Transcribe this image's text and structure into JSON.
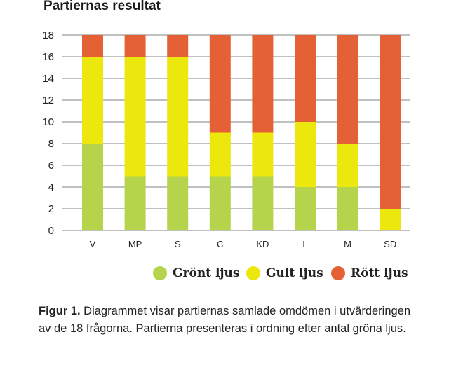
{
  "chart_data": {
    "type": "bar",
    "stacked": true,
    "title": "Partiernas resultat",
    "categories": [
      "V",
      "MP",
      "S",
      "C",
      "KD",
      "L",
      "M",
      "SD"
    ],
    "series": [
      {
        "name": "Grönt ljus",
        "color": "#b5d34b",
        "values": [
          8,
          5,
          5,
          5,
          5,
          4,
          4,
          0
        ]
      },
      {
        "name": "Gult ljus",
        "color": "#ece70d",
        "values": [
          8,
          11,
          11,
          4,
          4,
          6,
          4,
          2
        ]
      },
      {
        "name": "Rött ljus",
        "color": "#e46035",
        "values": [
          2,
          2,
          2,
          9,
          9,
          8,
          10,
          16
        ]
      }
    ],
    "ylim": [
      0,
      18
    ],
    "yticks": [
      0,
      2,
      4,
      6,
      8,
      10,
      12,
      14,
      16,
      18
    ],
    "xlabel": "",
    "ylabel": "",
    "grid": true,
    "legend": "bottom"
  },
  "caption": {
    "label": "Figur 1.",
    "text": " Diagrammet visar partiernas samlade omdömen i utvärderingen av de 18 frågorna. Partierna presenteras i ordning efter antal gröna ljus."
  }
}
